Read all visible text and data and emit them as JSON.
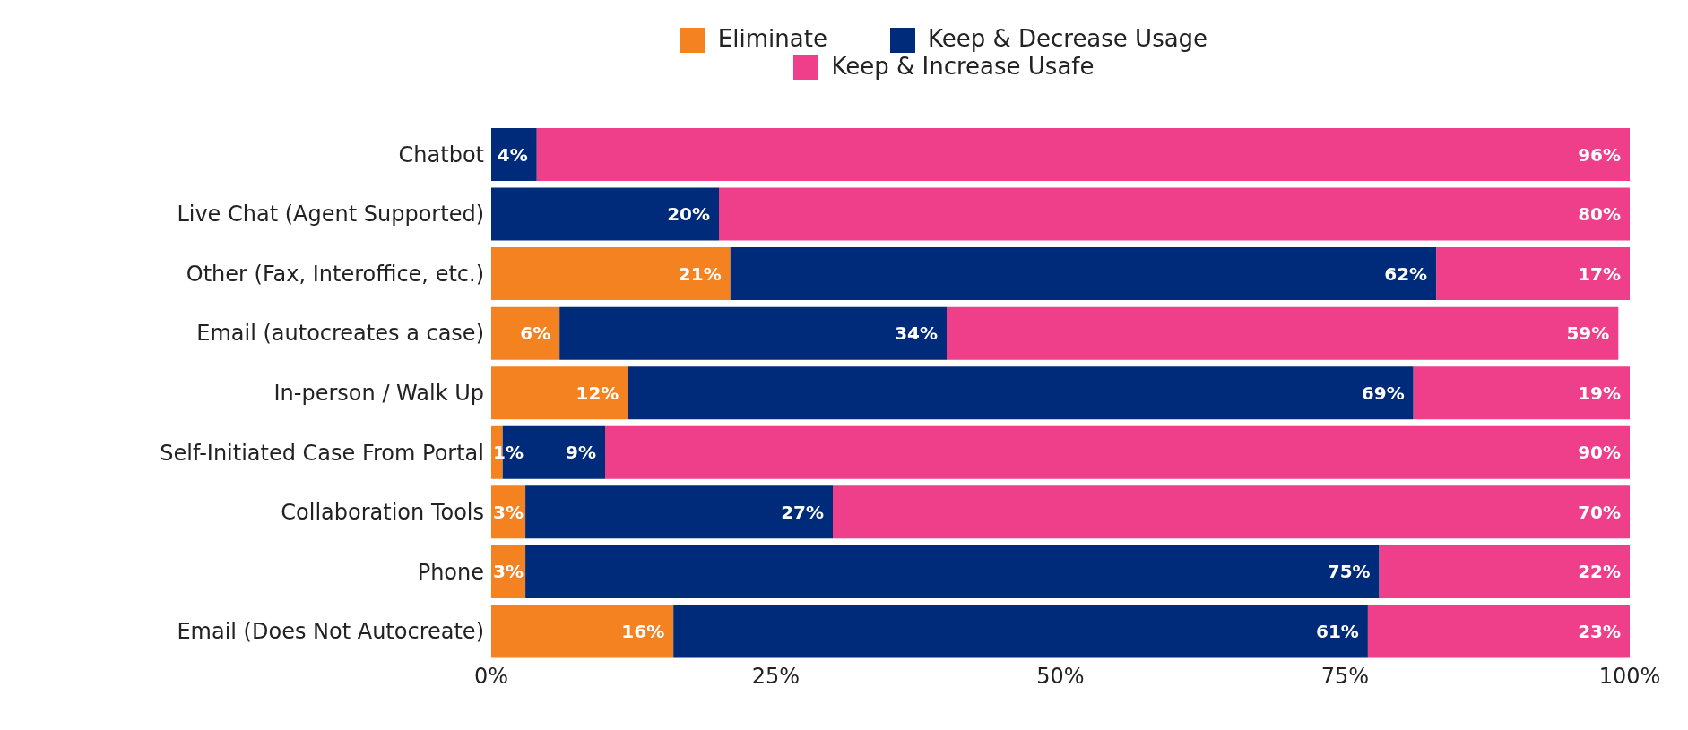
{
  "chart_data": {
    "type": "bar",
    "orientation": "horizontal",
    "stacked": true,
    "legend": "top",
    "grid": false,
    "categories": [
      "Chatbot",
      "Live Chat (Agent Supported)",
      "Other (Fax, Interoffice, etc.)",
      "Email (autocreates a case)",
      "In-person / Walk Up",
      "Self-Initiated Case From Portal",
      "Collaboration Tools",
      "Phone",
      "Email (Does Not Autocreate)"
    ],
    "xlim": [
      0,
      100
    ],
    "xticks": [
      {
        "value": 0,
        "label": "0%"
      },
      {
        "value": 25,
        "label": "25%"
      },
      {
        "value": 50,
        "label": "50%"
      },
      {
        "value": 75,
        "label": "75%"
      },
      {
        "value": 100,
        "label": "100%"
      }
    ],
    "series": [
      {
        "name": "Eliminate",
        "color": "#f58220",
        "values": [
          null,
          null,
          21,
          6,
          12,
          1,
          3,
          3,
          16
        ],
        "value_labels": [
          null,
          null,
          "21%",
          "6%",
          "12%",
          "1%",
          "3%",
          "3%",
          "16%"
        ]
      },
      {
        "name": "Keep & Decrease Usage",
        "color": "#002b7a",
        "values": [
          4,
          20,
          62,
          34,
          69,
          9,
          27,
          75,
          61
        ],
        "value_labels": [
          "4%",
          "20%",
          "62%",
          "34%",
          "69%",
          "9%",
          "27%",
          "75%",
          "61%"
        ]
      },
      {
        "name": "Keep & Increase Usafe",
        "color": "#ef3e8a",
        "values": [
          96,
          80,
          17,
          59,
          19,
          90,
          70,
          22,
          23
        ],
        "value_labels": [
          "96%",
          "80%",
          "17%",
          "59%",
          "19%",
          "90%",
          "70%",
          "22%",
          "23%"
        ]
      }
    ]
  }
}
